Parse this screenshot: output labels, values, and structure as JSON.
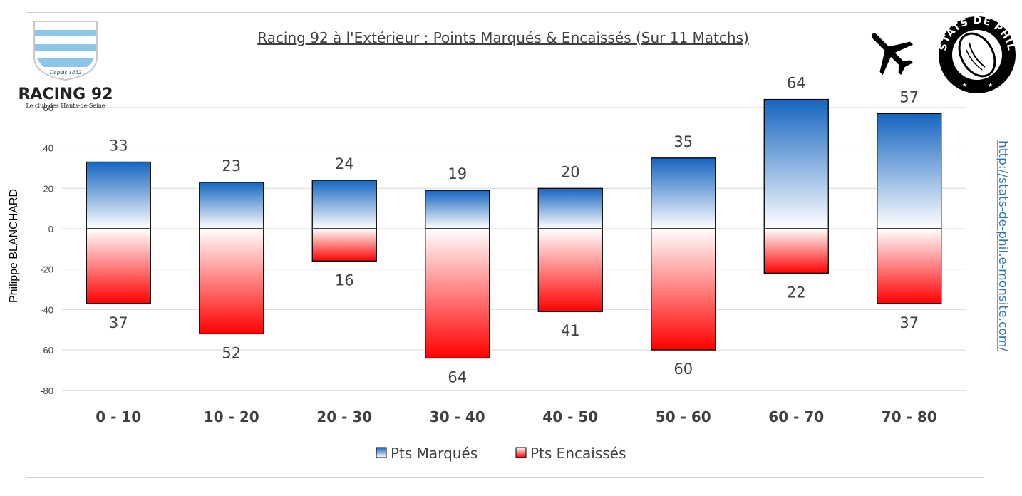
{
  "chart_data": {
    "type": "bar",
    "title": "Racing 92 à l'Extérieur : Points Marqués & Encaissés (Sur 11 Matchs)",
    "xlabel": "",
    "ylabel": "Philippe BLANCHARD",
    "ylim": [
      -80,
      60
    ],
    "yticks": [
      -80,
      -60,
      -40,
      -20,
      0,
      20,
      40,
      60
    ],
    "ytick_labels": [
      "-80",
      "-60",
      "-40",
      "-20",
      "0",
      "20",
      "40",
      "60"
    ],
    "grid": true,
    "legend_position": "bottom",
    "categories": [
      "0 - 10",
      "10 - 20",
      "20 - 30",
      "30 - 40",
      "40 - 50",
      "50 - 60",
      "60 - 70",
      "70 - 80"
    ],
    "series": [
      {
        "name": "Pts Marqués",
        "color": "#1565c0",
        "values": [
          33,
          23,
          24,
          19,
          20,
          35,
          64,
          57
        ],
        "labels": [
          "33",
          "23",
          "24",
          "19",
          "20",
          "35",
          "64",
          "57"
        ]
      },
      {
        "name": "Pts Encaissés",
        "color": "#ff0000",
        "values": [
          -37,
          -52,
          -16,
          -64,
          -41,
          -60,
          -22,
          -37
        ],
        "labels": [
          "37",
          "52",
          "16",
          "64",
          "41",
          "60",
          "22",
          "37"
        ]
      }
    ]
  },
  "side_url": "http://stats-de-phil.e-monsite.com/",
  "logo": {
    "name": "RACING 92",
    "tagline": "Le club des Hauts-de-Seine",
    "since": "Depuis 1882"
  },
  "badge": {
    "text": "STATS DE PHIL"
  },
  "colors": {
    "blue": "#1565c0",
    "red": "#ff0000",
    "grid": "#d9d9d9",
    "text": "#404040"
  },
  "icons": {
    "travel": "airplane-icon",
    "badge": "rugby-ball-icon"
  }
}
